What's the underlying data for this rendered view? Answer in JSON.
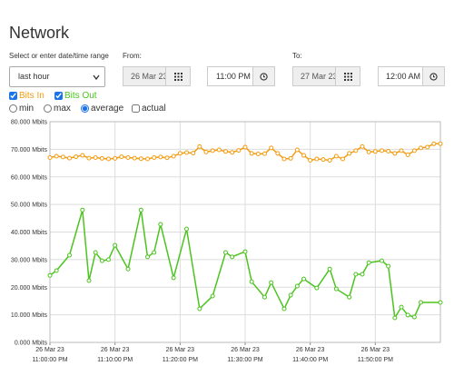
{
  "header": {
    "title": "Network"
  },
  "range": {
    "label": "Select or enter date/time range",
    "preset": "last hour",
    "from_label": "From:",
    "from_date": "26 Mar 23",
    "from_time": "11:00 PM",
    "to_label": "To:",
    "to_date": "27 Mar 23",
    "to_time": "12:00 AM"
  },
  "options": {
    "aggregation": [
      {
        "label": "min",
        "checked": false
      },
      {
        "label": "max",
        "checked": false
      },
      {
        "label": "average",
        "checked": true
      }
    ],
    "actual": {
      "label": "actual",
      "checked": false
    }
  },
  "chart_data": {
    "type": "line",
    "grid": true,
    "xlim": [
      0,
      60
    ],
    "xticks": [
      {
        "value": 0,
        "label": [
          "26 Mar 23",
          "11:00:00 PM"
        ]
      },
      {
        "value": 10,
        "label": [
          "26 Mar 23",
          "11:10:00 PM"
        ]
      },
      {
        "value": 20,
        "label": [
          "26 Mar 23",
          "11:20:00 PM"
        ]
      },
      {
        "value": 30,
        "label": [
          "26 Mar 23",
          "11:30:00 PM"
        ]
      },
      {
        "value": 40,
        "label": [
          "26 Mar 23",
          "11:40:00 PM"
        ]
      },
      {
        "value": 50,
        "label": [
          "26 Mar 23",
          "11:50:00 PM"
        ]
      }
    ],
    "ylim": [
      0,
      80
    ],
    "yticks": [
      {
        "value": 0,
        "label": "0.000 Mbits"
      },
      {
        "value": 10,
        "label": "10.000 Mbits"
      },
      {
        "value": 20,
        "label": "20.000 Mbits"
      },
      {
        "value": 30,
        "label": "30.000 Mbits"
      },
      {
        "value": 40,
        "label": "40.000 Mbits"
      },
      {
        "value": 50,
        "label": "50.000 Mbits"
      },
      {
        "value": 60,
        "label": "60.000 Mbits"
      },
      {
        "value": 70,
        "label": "70.000 Mbits"
      },
      {
        "value": 80,
        "label": "80.000 Mbits"
      }
    ],
    "series": [
      {
        "name": "Bits In",
        "color": "#f39c12",
        "checked": true,
        "x": [
          0,
          1,
          2,
          3,
          4,
          5,
          6,
          7,
          8,
          9,
          10,
          11,
          12,
          13,
          14,
          15,
          16,
          17,
          18,
          19,
          20,
          21,
          22,
          23,
          24,
          25,
          26,
          27,
          28,
          29,
          30,
          31,
          32,
          33,
          34,
          35,
          36,
          37,
          38,
          39,
          40,
          41,
          42,
          43,
          44,
          45,
          46,
          47,
          48,
          49,
          50,
          51,
          52,
          53,
          54,
          55,
          56,
          57,
          58,
          59,
          60
        ],
        "values": [
          67.0,
          67.5,
          67.2,
          66.8,
          67.3,
          67.8,
          66.8,
          67.0,
          66.7,
          66.5,
          66.7,
          67.3,
          67.0,
          66.8,
          66.6,
          66.5,
          67.0,
          67.2,
          66.9,
          67.5,
          68.5,
          68.8,
          68.6,
          71.0,
          69.0,
          69.5,
          69.8,
          69.2,
          68.9,
          69.6,
          70.8,
          68.5,
          68.3,
          68.4,
          70.5,
          68.5,
          66.5,
          66.7,
          69.8,
          67.8,
          66.0,
          66.5,
          66.3,
          66.0,
          67.5,
          66.5,
          68.5,
          69.5,
          71.0,
          69.0,
          69.2,
          69.5,
          69.3,
          68.5,
          69.5,
          68.0,
          69.5,
          70.5,
          70.8,
          72.0,
          72.0
        ]
      },
      {
        "name": "Bits Out",
        "color": "#4cc41f",
        "checked": true,
        "x": [
          0,
          1,
          3,
          5,
          6,
          7,
          8,
          9,
          10,
          12,
          14,
          15,
          16,
          17,
          19,
          21,
          23,
          25,
          27,
          28,
          30,
          31,
          33,
          34,
          36,
          37,
          38,
          39,
          41,
          43,
          44,
          46,
          47,
          48,
          49,
          51,
          52,
          53,
          54,
          55,
          56,
          57,
          60
        ],
        "values": [
          24.3,
          26.0,
          31.6,
          48.0,
          22.4,
          32.6,
          29.6,
          30.0,
          35.2,
          26.6,
          48.0,
          31.0,
          32.6,
          42.8,
          23.4,
          41.1,
          12.2,
          16.8,
          32.6,
          31.0,
          32.9,
          22.0,
          16.4,
          21.7,
          12.2,
          17.1,
          20.4,
          23.0,
          19.7,
          26.6,
          19.4,
          16.4,
          24.7,
          24.7,
          28.9,
          29.6,
          27.6,
          8.9,
          12.8,
          9.9,
          9.2,
          14.5,
          14.5
        ]
      }
    ]
  }
}
